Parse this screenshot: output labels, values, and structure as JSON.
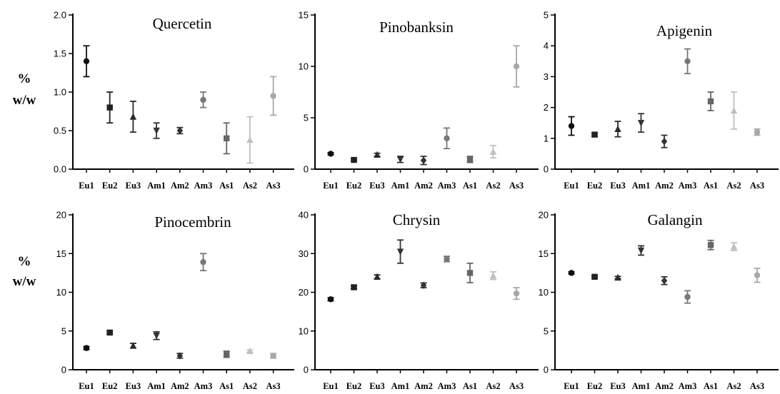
{
  "ylabel_line1": "%",
  "ylabel_line2": "w/w",
  "chart_data": [
    {
      "type": "scatter",
      "title": "Quercetin",
      "categories": [
        "Eu1",
        "Eu2",
        "Eu3",
        "Am1",
        "Am2",
        "Am3",
        "As1",
        "As2",
        "As3"
      ],
      "values": [
        1.4,
        0.8,
        0.68,
        0.5,
        0.5,
        0.9,
        0.4,
        0.38,
        0.95
      ],
      "errors": [
        0.2,
        0.2,
        0.2,
        0.1,
        0.04,
        0.1,
        0.2,
        0.3,
        0.25
      ],
      "markers": [
        "circle",
        "square",
        "triangle",
        "tri-down",
        "diamond",
        "circle",
        "square",
        "triangle",
        "circle"
      ],
      "colors": [
        "#111111",
        "#222222",
        "#2a2a2a",
        "#333333",
        "#333333",
        "#777777",
        "#666666",
        "#c0c0c0",
        "#a8a8a8"
      ],
      "ylim": [
        0,
        2.0
      ],
      "yticks": [
        "0.0",
        "0.5",
        "1.0",
        "1.5",
        "2.0"
      ],
      "xlabel": "",
      "ylabel": "% w/w"
    },
    {
      "type": "scatter",
      "title": "Pinobanksin",
      "categories": [
        "Eu1",
        "Eu2",
        "Eu3",
        "Am1",
        "Am2",
        "Am3",
        "As1",
        "As2",
        "As3"
      ],
      "values": [
        1.5,
        0.9,
        1.4,
        0.95,
        0.85,
        3.0,
        0.95,
        1.7,
        10.0
      ],
      "errors": [
        0.1,
        0.1,
        0.15,
        0.3,
        0.4,
        1.0,
        0.3,
        0.6,
        2.0
      ],
      "markers": [
        "circle",
        "square",
        "triangle",
        "tri-down",
        "diamond",
        "circle",
        "square",
        "triangle",
        "circle"
      ],
      "colors": [
        "#111111",
        "#222222",
        "#2a2a2a",
        "#333333",
        "#333333",
        "#777777",
        "#666666",
        "#c0c0c0",
        "#a8a8a8"
      ],
      "ylim": [
        0,
        15
      ],
      "yticks": [
        "0",
        "5",
        "10",
        "15"
      ],
      "xlabel": "",
      "ylabel": ""
    },
    {
      "type": "scatter",
      "title": "Apigenin",
      "categories": [
        "Eu1",
        "Eu2",
        "Eu3",
        "Am1",
        "Am2",
        "Am3",
        "As1",
        "As2",
        "As3"
      ],
      "values": [
        1.4,
        1.12,
        1.3,
        1.5,
        0.9,
        3.5,
        2.2,
        1.9,
        1.2
      ],
      "errors": [
        0.3,
        0.05,
        0.25,
        0.3,
        0.2,
        0.4,
        0.3,
        0.6,
        0.1
      ],
      "markers": [
        "circle",
        "square",
        "triangle",
        "tri-down",
        "diamond",
        "circle",
        "square",
        "triangle",
        "circle"
      ],
      "colors": [
        "#111111",
        "#222222",
        "#2a2a2a",
        "#333333",
        "#333333",
        "#777777",
        "#666666",
        "#c0c0c0",
        "#a8a8a8"
      ],
      "ylim": [
        0,
        5
      ],
      "yticks": [
        "0",
        "1",
        "2",
        "3",
        "4",
        "5"
      ],
      "xlabel": "",
      "ylabel": ""
    },
    {
      "type": "scatter",
      "title": "Pinocembrin",
      "categories": [
        "Eu1",
        "Eu2",
        "Eu3",
        "Am1",
        "Am2",
        "Am3",
        "As1",
        "As2",
        "As3"
      ],
      "values": [
        2.8,
        4.8,
        3.1,
        4.4,
        1.8,
        13.9,
        2.0,
        2.4,
        1.8
      ],
      "errors": [
        0.2,
        0.2,
        0.3,
        0.5,
        0.3,
        1.1,
        0.4,
        0.15,
        0.3
      ],
      "markers": [
        "circle",
        "square",
        "triangle",
        "tri-down",
        "diamond",
        "circle",
        "square",
        "triangle",
        "circle"
      ],
      "colors": [
        "#111111",
        "#222222",
        "#2a2a2a",
        "#333333",
        "#333333",
        "#777777",
        "#666666",
        "#c0c0c0",
        "#a8a8a8"
      ],
      "ylim": [
        0,
        20
      ],
      "yticks": [
        "0",
        "5",
        "10",
        "15",
        "20"
      ],
      "xlabel": "",
      "ylabel": "% w/w"
    },
    {
      "type": "scatter",
      "title": "Chrysin",
      "categories": [
        "Eu1",
        "Eu2",
        "Eu3",
        "Am1",
        "Am2",
        "Am3",
        "As1",
        "As2",
        "As3"
      ],
      "values": [
        18.2,
        21.3,
        24.0,
        30.5,
        21.8,
        28.6,
        25.0,
        24.3,
        19.7
      ],
      "errors": [
        0.4,
        0.4,
        0.5,
        3.0,
        0.6,
        0.7,
        2.5,
        1.0,
        1.5
      ],
      "markers": [
        "circle",
        "square",
        "triangle",
        "tri-down",
        "diamond",
        "circle",
        "square",
        "triangle",
        "circle"
      ],
      "colors": [
        "#111111",
        "#222222",
        "#2a2a2a",
        "#333333",
        "#333333",
        "#777777",
        "#666666",
        "#c0c0c0",
        "#a8a8a8"
      ],
      "ylim": [
        0,
        40
      ],
      "yticks": [
        "0",
        "10",
        "20",
        "30",
        "40"
      ],
      "xlabel": "",
      "ylabel": ""
    },
    {
      "type": "scatter",
      "title": "Galangin",
      "categories": [
        "Eu1",
        "Eu2",
        "Eu3",
        "Am1",
        "Am2",
        "Am3",
        "As1",
        "As2",
        "As3"
      ],
      "values": [
        12.5,
        12.0,
        11.9,
        15.4,
        11.5,
        9.4,
        16.1,
        15.9,
        12.2
      ],
      "errors": [
        0.15,
        0.15,
        0.15,
        0.6,
        0.5,
        0.8,
        0.6,
        0.5,
        0.9
      ],
      "markers": [
        "circle",
        "square",
        "triangle",
        "tri-down",
        "diamond",
        "circle",
        "square",
        "triangle",
        "circle"
      ],
      "colors": [
        "#111111",
        "#222222",
        "#2a2a2a",
        "#333333",
        "#333333",
        "#777777",
        "#666666",
        "#c0c0c0",
        "#a8a8a8"
      ],
      "ylim": [
        0,
        20
      ],
      "yticks": [
        "0",
        "5",
        "10",
        "15",
        "20"
      ],
      "xlabel": "",
      "ylabel": ""
    }
  ]
}
